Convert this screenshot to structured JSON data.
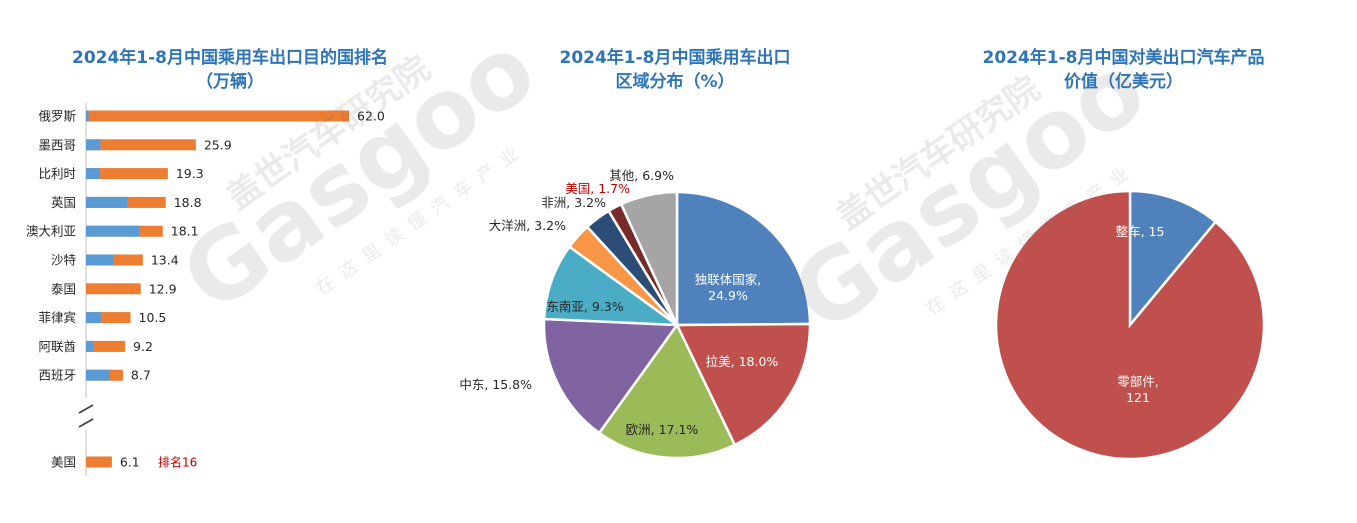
{
  "watermark": {
    "brand_cn": "盖世汽车研究院",
    "brand_en": "Gasgoo",
    "slogan": "在这里读懂汽车产业"
  },
  "colors": {
    "orange": "#ed7d31",
    "blue": "#5b9bd5",
    "title": "#2e75b6",
    "red_label": "#c00000"
  },
  "charts": {
    "bar": {
      "title_line1": "2024年1-8月中国乘用车出口目的国排名",
      "title_line2": "（万辆）"
    },
    "pie1": {
      "title_line1": "2024年1-8月中国乘用车出口",
      "title_line2": "区域分布（%）"
    },
    "pie2": {
      "title_line1": "2024年1-8月中国对美出口汽车产品",
      "title_line2": "价值（亿美元）"
    }
  },
  "chart_data": [
    {
      "type": "bar",
      "orientation": "horizontal",
      "title": "2024年1-8月中国乘用车出口目的国排名（万辆）",
      "categories": [
        "俄罗斯",
        "墨西哥",
        "比利时",
        "英国",
        "澳大利亚",
        "沙特",
        "泰国",
        "菲律宾",
        "阿联酋",
        "西班牙"
      ],
      "values": [
        62.0,
        25.9,
        19.3,
        18.8,
        18.1,
        13.4,
        12.9,
        10.5,
        9.2,
        8.7
      ],
      "value_labels": [
        "62.0",
        "25.9",
        "19.3",
        "18.8",
        "18.1",
        "13.4",
        "12.9",
        "10.5",
        "9.2",
        "8.7"
      ],
      "blue_segment_values": [
        0.6,
        3.4,
        3.2,
        9.7,
        12.5,
        6.4,
        0,
        3.5,
        1.8,
        5.4
      ],
      "extra": {
        "category": "美国",
        "value": 6.1,
        "value_label": "6.1",
        "rank_note": "排名16"
      },
      "axis_break": true
    },
    {
      "type": "pie",
      "title": "2024年1-8月中国乘用车出口区域分布（%）",
      "slices": [
        {
          "name": "独联体国家",
          "value": 24.9,
          "label": "独联体国家,\n24.9%",
          "color": "#4f81bd"
        },
        {
          "name": "拉美",
          "value": 18.0,
          "label": "拉美, 18.0%",
          "color": "#c0504d"
        },
        {
          "name": "欧洲",
          "value": 17.1,
          "label": "欧洲, 17.1%",
          "color": "#9bbb59"
        },
        {
          "name": "中东",
          "value": 15.8,
          "label": "中东, 15.8%",
          "color": "#8064a2"
        },
        {
          "name": "东南亚",
          "value": 9.3,
          "label": "东南亚, 9.3%",
          "color": "#4bacc6"
        },
        {
          "name": "大洋洲",
          "value": 3.2,
          "label": "大洋洲, 3.2%",
          "color": "#f79646"
        },
        {
          "name": "非洲",
          "value": 3.2,
          "label": "非洲, 3.2%",
          "color": "#2c4d75"
        },
        {
          "name": "美国",
          "value": 1.7,
          "label": "美国, 1.7%",
          "color": "#772c2a"
        },
        {
          "name": "其他",
          "value": 6.9,
          "label": "其他, 6.9%",
          "color": "#a5a5a5"
        }
      ]
    },
    {
      "type": "pie",
      "title": "2024年1-8月中国对美出口汽车产品价值（亿美元）",
      "slices": [
        {
          "name": "整车",
          "value": 15,
          "label": "整车, 15",
          "color": "#4f81bd"
        },
        {
          "name": "零部件",
          "value": 121,
          "label": "零部件,\n121",
          "color": "#c0504d"
        }
      ]
    }
  ]
}
